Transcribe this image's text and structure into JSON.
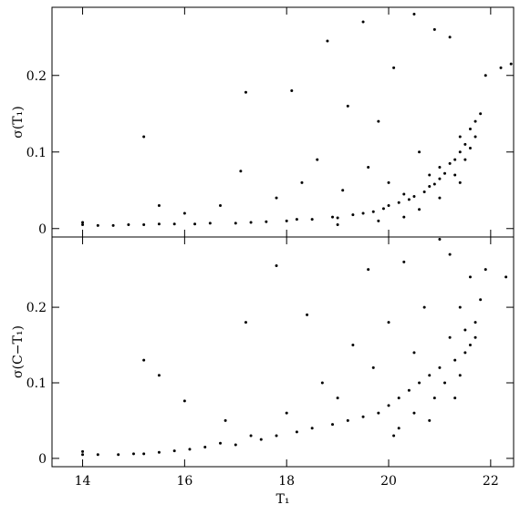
{
  "chart_data": [
    {
      "type": "scatter",
      "ylabel": "σ(T₁)",
      "color": "#000000",
      "xlim": [
        13.4,
        22.45
      ],
      "ylim": [
        -0.011,
        0.289
      ],
      "xticks": [
        14,
        16,
        18,
        20,
        22
      ],
      "yticks": [
        0,
        0.1,
        0.2
      ],
      "x": [
        14.0,
        14.0,
        14.3,
        14.6,
        14.9,
        15.2,
        15.2,
        15.5,
        15.5,
        15.8,
        16.0,
        16.2,
        16.5,
        16.7,
        17.0,
        17.1,
        17.2,
        17.3,
        17.6,
        17.8,
        18.0,
        18.1,
        18.2,
        18.3,
        18.5,
        18.6,
        18.8,
        18.9,
        19.0,
        19.1,
        19.2,
        19.3,
        19.5,
        19.5,
        19.6,
        19.7,
        19.8,
        19.9,
        20.0,
        20.0,
        20.1,
        20.2,
        20.3,
        20.4,
        20.5,
        20.5,
        20.6,
        20.7,
        20.8,
        20.8,
        20.9,
        20.9,
        21.0,
        21.0,
        21.1,
        21.2,
        21.2,
        21.3,
        21.3,
        21.4,
        21.4,
        21.5,
        21.5,
        21.6,
        21.6,
        21.7,
        21.7,
        21.8,
        21.9,
        22.2,
        22.4,
        20.3,
        20.6,
        21.0,
        21.4,
        19.0,
        19.8
      ],
      "values": [
        0.005,
        0.008,
        0.004,
        0.004,
        0.005,
        0.12,
        0.005,
        0.006,
        0.03,
        0.006,
        0.02,
        0.006,
        0.007,
        0.03,
        0.007,
        0.075,
        0.178,
        0.008,
        0.009,
        0.04,
        0.01,
        0.18,
        0.012,
        0.06,
        0.012,
        0.09,
        0.245,
        0.015,
        0.014,
        0.05,
        0.16,
        0.018,
        0.27,
        0.02,
        0.08,
        0.022,
        0.14,
        0.026,
        0.03,
        0.06,
        0.21,
        0.034,
        0.045,
        0.038,
        0.28,
        0.042,
        0.1,
        0.048,
        0.055,
        0.07,
        0.26,
        0.058,
        0.065,
        0.08,
        0.072,
        0.25,
        0.085,
        0.09,
        0.07,
        0.1,
        0.12,
        0.11,
        0.09,
        0.13,
        0.105,
        0.14,
        0.12,
        0.15,
        0.2,
        0.21,
        0.215,
        0.015,
        0.025,
        0.04,
        0.06,
        0.005,
        0.01
      ]
    },
    {
      "type": "scatter",
      "ylabel": "σ(C−T₁)",
      "xlabel": "T₁",
      "color": "#000000",
      "xlim": [
        13.4,
        22.45
      ],
      "ylim": [
        -0.011,
        0.293
      ],
      "xticks": [
        14,
        16,
        18,
        20,
        22
      ],
      "yticks": [
        0,
        0.1,
        0.2
      ],
      "x": [
        14.0,
        14.0,
        14.3,
        14.7,
        15.0,
        15.2,
        15.2,
        15.5,
        15.5,
        15.8,
        16.0,
        16.1,
        16.4,
        16.7,
        16.8,
        17.0,
        17.2,
        17.3,
        17.5,
        17.8,
        17.8,
        18.0,
        18.2,
        18.4,
        18.5,
        18.7,
        18.9,
        19.0,
        19.2,
        19.3,
        19.5,
        19.6,
        19.7,
        19.8,
        20.0,
        20.0,
        20.1,
        20.2,
        20.3,
        20.4,
        20.5,
        20.5,
        20.6,
        20.7,
        20.8,
        20.9,
        21.0,
        21.0,
        21.1,
        21.2,
        21.2,
        21.3,
        21.4,
        21.4,
        21.5,
        21.5,
        21.6,
        21.6,
        21.7,
        21.7,
        21.8,
        21.9,
        22.3,
        20.2,
        20.8,
        21.3
      ],
      "values": [
        0.005,
        0.009,
        0.005,
        0.005,
        0.006,
        0.13,
        0.006,
        0.11,
        0.008,
        0.01,
        0.076,
        0.012,
        0.015,
        0.02,
        0.05,
        0.018,
        0.18,
        0.03,
        0.025,
        0.255,
        0.03,
        0.06,
        0.035,
        0.19,
        0.04,
        0.1,
        0.045,
        0.08,
        0.05,
        0.15,
        0.055,
        0.25,
        0.12,
        0.06,
        0.07,
        0.18,
        0.03,
        0.08,
        0.26,
        0.09,
        0.06,
        0.14,
        0.1,
        0.2,
        0.11,
        0.08,
        0.29,
        0.12,
        0.1,
        0.16,
        0.27,
        0.13,
        0.11,
        0.2,
        0.14,
        0.17,
        0.15,
        0.24,
        0.18,
        0.16,
        0.21,
        0.25,
        0.24,
        0.04,
        0.05,
        0.08
      ]
    }
  ]
}
